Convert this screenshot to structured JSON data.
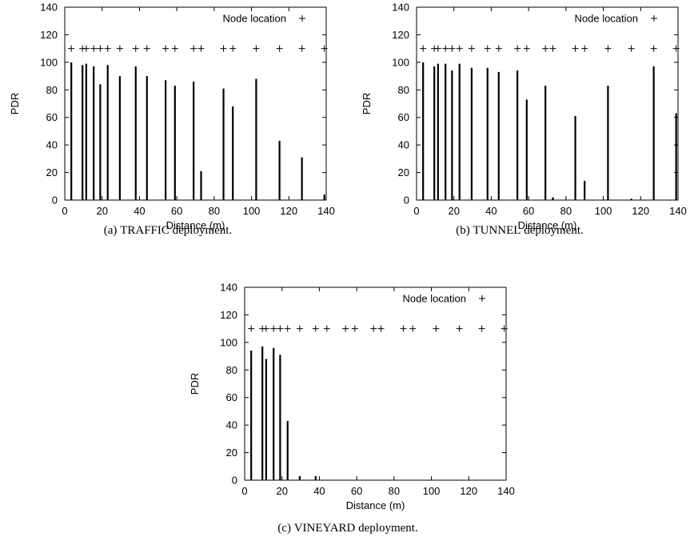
{
  "chart_data": [
    {
      "type": "bar",
      "caption_prefix": "(a)",
      "caption_name": "TRAFFIC",
      "caption_suffix": "deployment.",
      "xlabel": "Distance (m)",
      "ylabel": "PDR",
      "xlim": [
        0,
        140
      ],
      "ylim": [
        0,
        140
      ],
      "xticks": [
        0,
        20,
        40,
        60,
        80,
        100,
        120,
        140
      ],
      "yticks": [
        0,
        20,
        40,
        60,
        80,
        100,
        120,
        140
      ],
      "legend": {
        "label": "Node location",
        "symbol": "+",
        "position": "top-right"
      },
      "grid": false,
      "node_marker_y": 110,
      "node_locations": [
        3.5,
        9.5,
        11.5,
        15.5,
        19,
        23,
        29.5,
        38,
        44,
        54,
        59,
        69,
        73,
        85,
        90,
        102.5,
        115,
        127,
        139
      ],
      "series": [
        {
          "x": [
            3.5,
            9.5,
            11.5,
            15.5,
            19,
            23,
            29.5,
            38,
            44,
            54,
            59,
            69,
            73,
            85,
            90,
            102.5,
            115,
            127,
            139
          ],
          "values": [
            100,
            98,
            99,
            97,
            84,
            98,
            90,
            97,
            90,
            87,
            83,
            86,
            21,
            81,
            68,
            88,
            43,
            31,
            4
          ]
        }
      ]
    },
    {
      "type": "bar",
      "caption_prefix": "(b)",
      "caption_name": "TUNNEL",
      "caption_suffix": "deployment.",
      "xlabel": "Distance (m)",
      "ylabel": "PDR",
      "xlim": [
        0,
        140
      ],
      "ylim": [
        0,
        140
      ],
      "xticks": [
        0,
        20,
        40,
        60,
        80,
        100,
        120,
        140
      ],
      "yticks": [
        0,
        20,
        40,
        60,
        80,
        100,
        120,
        140
      ],
      "legend": {
        "label": "Node location",
        "symbol": "+",
        "position": "top-right"
      },
      "grid": false,
      "node_marker_y": 110,
      "node_locations": [
        3.5,
        9.5,
        11.5,
        15.5,
        19,
        23,
        29.5,
        38,
        44,
        54,
        59,
        69,
        73,
        85,
        90,
        102.5,
        115,
        127,
        139
      ],
      "series": [
        {
          "x": [
            3.5,
            9.5,
            11.5,
            15.5,
            19,
            23,
            29.5,
            38,
            44,
            54,
            59,
            69,
            73,
            85,
            90,
            102.5,
            115,
            127,
            139
          ],
          "values": [
            100,
            97,
            99,
            99,
            94,
            99,
            96,
            96,
            93,
            94,
            73,
            83,
            2,
            61,
            14,
            83,
            1,
            97,
            63
          ]
        }
      ]
    },
    {
      "type": "bar",
      "caption_prefix": "(c)",
      "caption_name": "VINEYARD",
      "caption_suffix": "deployment.",
      "xlabel": "Distance (m)",
      "ylabel": "PDR",
      "xlim": [
        0,
        140
      ],
      "ylim": [
        0,
        140
      ],
      "xticks": [
        0,
        20,
        40,
        60,
        80,
        100,
        120,
        140
      ],
      "yticks": [
        0,
        20,
        40,
        60,
        80,
        100,
        120,
        140
      ],
      "legend": {
        "label": "Node location",
        "symbol": "+",
        "position": "top-right"
      },
      "grid": false,
      "node_marker_y": 110,
      "node_locations": [
        3.5,
        9.5,
        11.5,
        15.5,
        19,
        23,
        29.5,
        38,
        44,
        54,
        59,
        69,
        73,
        85,
        90,
        102.5,
        115,
        127,
        139
      ],
      "series": [
        {
          "x": [
            3.5,
            9.5,
            11.5,
            15.5,
            19,
            23,
            29.5,
            38,
            44,
            54,
            59,
            69,
            73,
            85,
            90,
            102.5,
            115,
            127,
            139
          ],
          "values": [
            94,
            97,
            88,
            96,
            91,
            43,
            3,
            3,
            0,
            0,
            0,
            0,
            0,
            0,
            0,
            0,
            0,
            0,
            0
          ]
        }
      ]
    }
  ]
}
